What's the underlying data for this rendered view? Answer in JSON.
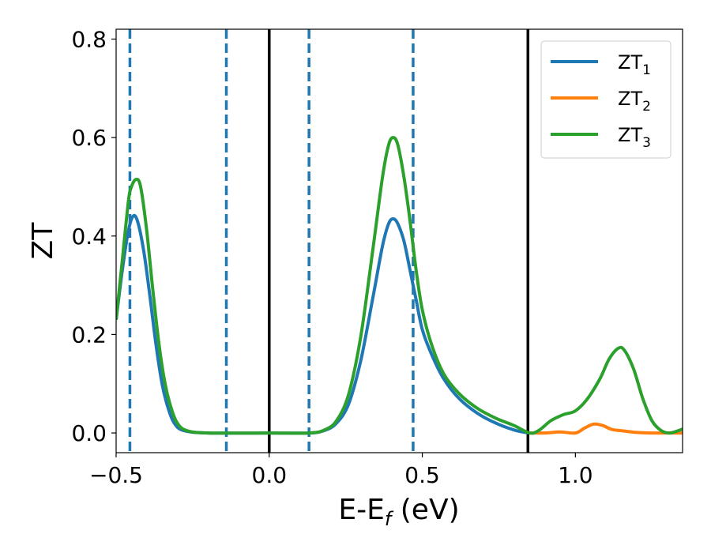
{
  "chart_data": {
    "type": "line",
    "xlabel": "E-E",
    "xlabel_sub": "f",
    "xlabel_unit": " (eV)",
    "ylabel": "ZT",
    "xlim": [
      -0.5,
      1.35
    ],
    "ylim": [
      -0.04,
      0.82
    ],
    "x_ticks": [
      -0.5,
      0.0,
      0.5,
      1.0
    ],
    "x_tick_labels": [
      "−0.5",
      "0.0",
      "0.5",
      "1.0"
    ],
    "y_ticks": [
      0.0,
      0.2,
      0.4,
      0.6,
      0.8
    ],
    "y_tick_labels": [
      "0.0",
      "0.2",
      "0.4",
      "0.6",
      "0.8"
    ],
    "grid": false,
    "legend_position": "top-right",
    "series": [
      {
        "name": "ZT",
        "sub": "1",
        "color": "#1f77b4",
        "points": [
          [
            -0.5,
            0.23
          ],
          [
            -0.48,
            0.33
          ],
          [
            -0.46,
            0.41
          ],
          [
            -0.445,
            0.44
          ],
          [
            -0.43,
            0.43
          ],
          [
            -0.41,
            0.37
          ],
          [
            -0.39,
            0.28
          ],
          [
            -0.37,
            0.18
          ],
          [
            -0.35,
            0.1
          ],
          [
            -0.33,
            0.05
          ],
          [
            -0.31,
            0.02
          ],
          [
            -0.28,
            0.005
          ],
          [
            -0.2,
            0.0
          ],
          [
            0.0,
            0.0
          ],
          [
            0.13,
            0.0
          ],
          [
            0.18,
            0.005
          ],
          [
            0.22,
            0.02
          ],
          [
            0.26,
            0.06
          ],
          [
            0.3,
            0.15
          ],
          [
            0.34,
            0.28
          ],
          [
            0.37,
            0.38
          ],
          [
            0.39,
            0.425
          ],
          [
            0.405,
            0.435
          ],
          [
            0.42,
            0.425
          ],
          [
            0.44,
            0.39
          ],
          [
            0.46,
            0.33
          ],
          [
            0.48,
            0.27
          ],
          [
            0.5,
            0.21
          ],
          [
            0.53,
            0.16
          ],
          [
            0.57,
            0.11
          ],
          [
            0.62,
            0.07
          ],
          [
            0.68,
            0.04
          ],
          [
            0.74,
            0.02
          ],
          [
            0.8,
            0.006
          ],
          [
            0.845,
            0.0
          ]
        ]
      },
      {
        "name": "ZT",
        "sub": "2",
        "color": "#ff7f0e",
        "points": [
          [
            0.85,
            0.0
          ],
          [
            0.9,
            0.0
          ],
          [
            0.95,
            0.002
          ],
          [
            1.0,
            0.0
          ],
          [
            1.03,
            0.01
          ],
          [
            1.06,
            0.018
          ],
          [
            1.09,
            0.015
          ],
          [
            1.12,
            0.007
          ],
          [
            1.16,
            0.004
          ],
          [
            1.2,
            0.001
          ],
          [
            1.25,
            0.0
          ],
          [
            1.3,
            0.0
          ],
          [
            1.35,
            0.0
          ]
        ]
      },
      {
        "name": "ZT",
        "sub": "3",
        "color": "#2ca02c",
        "points": [
          [
            -0.5,
            0.23
          ],
          [
            -0.48,
            0.35
          ],
          [
            -0.46,
            0.47
          ],
          [
            -0.45,
            0.5
          ],
          [
            -0.435,
            0.515
          ],
          [
            -0.42,
            0.5
          ],
          [
            -0.4,
            0.41
          ],
          [
            -0.38,
            0.29
          ],
          [
            -0.36,
            0.18
          ],
          [
            -0.34,
            0.1
          ],
          [
            -0.32,
            0.05
          ],
          [
            -0.3,
            0.02
          ],
          [
            -0.27,
            0.005
          ],
          [
            -0.2,
            0.0
          ],
          [
            0.0,
            0.0
          ],
          [
            0.13,
            0.0
          ],
          [
            0.18,
            0.006
          ],
          [
            0.22,
            0.025
          ],
          [
            0.26,
            0.08
          ],
          [
            0.3,
            0.2
          ],
          [
            0.34,
            0.38
          ],
          [
            0.37,
            0.52
          ],
          [
            0.39,
            0.585
          ],
          [
            0.405,
            0.6
          ],
          [
            0.42,
            0.585
          ],
          [
            0.44,
            0.52
          ],
          [
            0.46,
            0.43
          ],
          [
            0.48,
            0.33
          ],
          [
            0.5,
            0.25
          ],
          [
            0.53,
            0.18
          ],
          [
            0.57,
            0.12
          ],
          [
            0.62,
            0.08
          ],
          [
            0.68,
            0.05
          ],
          [
            0.74,
            0.03
          ],
          [
            0.8,
            0.015
          ],
          [
            0.85,
            0.0
          ],
          [
            0.88,
            0.005
          ],
          [
            0.92,
            0.025
          ],
          [
            0.96,
            0.037
          ],
          [
            1.0,
            0.045
          ],
          [
            1.04,
            0.07
          ],
          [
            1.08,
            0.11
          ],
          [
            1.11,
            0.15
          ],
          [
            1.14,
            0.172
          ],
          [
            1.16,
            0.168
          ],
          [
            1.19,
            0.13
          ],
          [
            1.22,
            0.07
          ],
          [
            1.25,
            0.025
          ],
          [
            1.28,
            0.005
          ],
          [
            1.31,
            0.0
          ],
          [
            1.35,
            0.008
          ]
        ]
      }
    ],
    "vlines_solid": [
      0.0,
      0.845
    ],
    "vlines_dashed": [
      -0.455,
      -0.14,
      0.13,
      0.47
    ]
  }
}
